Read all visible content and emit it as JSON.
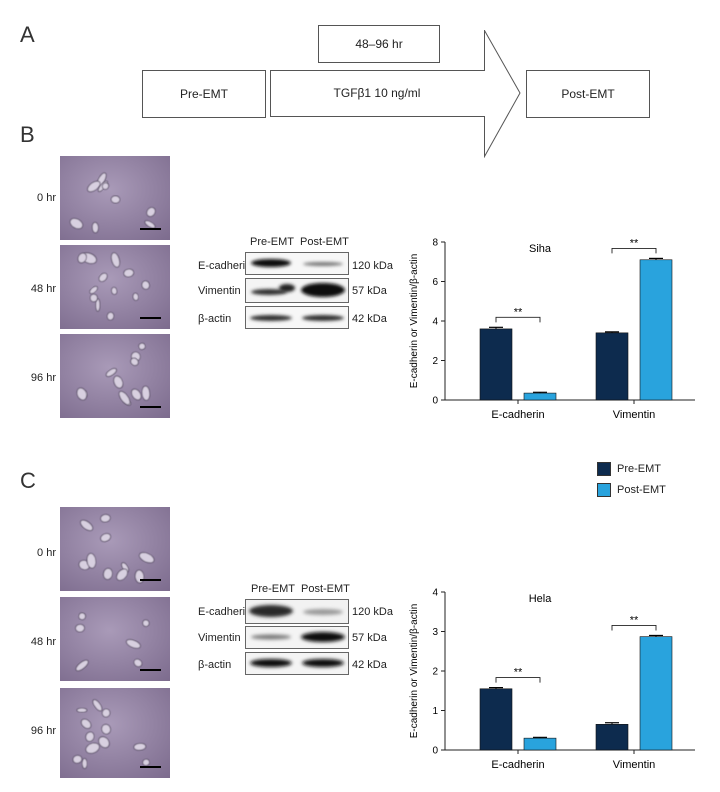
{
  "panels": {
    "A": "A",
    "B": "B",
    "C": "C"
  },
  "schematic": {
    "duration": "48–96 hr",
    "pre": "Pre-EMT",
    "treatment": "TGFβ1 10 ng/ml",
    "post": "Post-EMT"
  },
  "micro_labels": {
    "B": [
      "0 hr",
      "48 hr",
      "96 hr"
    ],
    "C": [
      "0 hr",
      "48 hr",
      "96 hr"
    ]
  },
  "blot": {
    "headers": [
      "Pre-EMT",
      "Post-EMT"
    ],
    "proteins": [
      "E-cadherin",
      "Vimentin",
      "β-actin"
    ],
    "sizes": [
      "120 kDa",
      "57 kDa",
      "42 kDa"
    ]
  },
  "legend": {
    "items": [
      "Pre-EMT",
      "Post-EMT"
    ]
  },
  "colors": {
    "pre": "#0d2b4e",
    "post": "#29a3dd"
  },
  "chart_data": [
    {
      "type": "bar",
      "title": "Siha",
      "ylabel": "E-cadherin or Vimentin/β-actin",
      "xlabel": "",
      "categories": [
        "E-cadherin",
        "Vimentin"
      ],
      "ylim": [
        0,
        8
      ],
      "yticks": [
        0,
        2,
        4,
        6,
        8
      ],
      "series": [
        {
          "name": "Pre-EMT",
          "values": [
            3.6,
            3.4
          ],
          "errors": [
            0.08,
            0.05
          ]
        },
        {
          "name": "Post-EMT",
          "values": [
            0.35,
            7.1
          ],
          "errors": [
            0.04,
            0.07
          ]
        }
      ],
      "significance": [
        "**",
        "**"
      ]
    },
    {
      "type": "bar",
      "title": "Hela",
      "ylabel": "E-cadherin or Vimentin/β-actin",
      "xlabel": "",
      "categories": [
        "E-cadherin",
        "Vimentin"
      ],
      "ylim": [
        0,
        4
      ],
      "yticks": [
        0,
        1,
        2,
        3,
        4
      ],
      "series": [
        {
          "name": "Pre-EMT",
          "values": [
            1.55,
            0.65
          ],
          "errors": [
            0.03,
            0.04
          ]
        },
        {
          "name": "Post-EMT",
          "values": [
            0.3,
            2.87
          ],
          "errors": [
            0.02,
            0.03
          ]
        }
      ],
      "significance": [
        "**",
        "**"
      ]
    }
  ]
}
